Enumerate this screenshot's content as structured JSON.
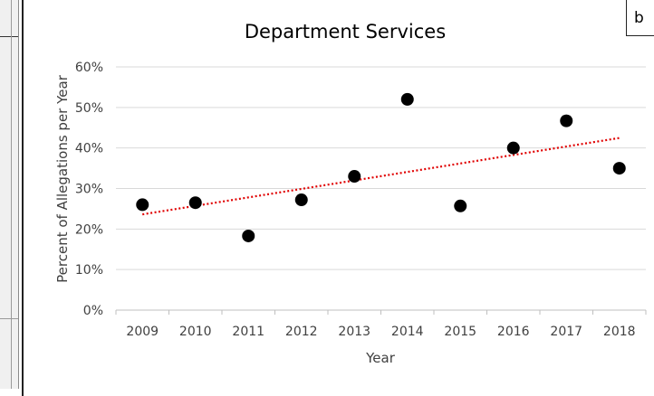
{
  "corner_label": "b",
  "chart_data": {
    "type": "scatter",
    "title": "Department Services",
    "xlabel": "Year",
    "ylabel": "Percent of Allegations per Year",
    "x": [
      "2009",
      "2010",
      "2011",
      "2012",
      "2013",
      "2014",
      "2015",
      "2016",
      "2017",
      "2018"
    ],
    "series": [
      {
        "values": [
          26,
          26.5,
          18.3,
          27.2,
          33,
          52,
          25.7,
          40,
          46.7,
          35
        ],
        "color": "#000000"
      }
    ],
    "trendline": {
      "type": "linear",
      "color": "#e00000",
      "style": "dotted"
    },
    "yticks": [
      "0%",
      "10%",
      "20%",
      "30%",
      "40%",
      "50%",
      "60%"
    ],
    "ylim": [
      0,
      60
    ],
    "grid": true,
    "legend": "none"
  }
}
